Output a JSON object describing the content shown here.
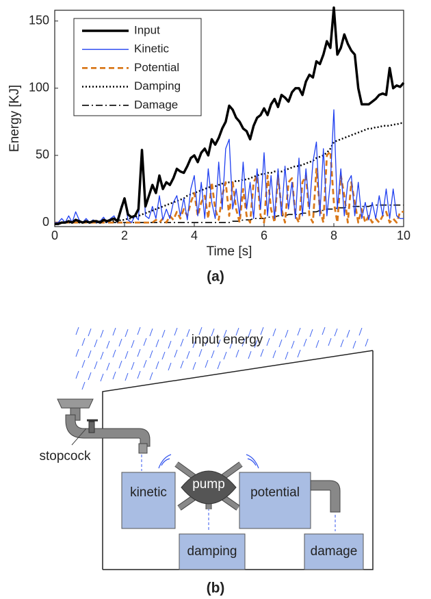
{
  "chart_data": {
    "type": "line",
    "caption": "(a)",
    "x_label": "Time [s]",
    "y_label": "Energy [KJ]",
    "x": [
      0,
      0.1,
      0.2,
      0.3,
      0.4,
      0.5,
      0.6,
      0.7,
      0.8,
      0.9,
      1,
      1.1,
      1.2,
      1.3,
      1.4,
      1.5,
      1.6,
      1.7,
      1.8,
      1.9,
      2,
      2.1,
      2.2,
      2.3,
      2.4,
      2.5,
      2.6,
      2.7,
      2.8,
      2.9,
      3,
      3.1,
      3.2,
      3.3,
      3.4,
      3.5,
      3.6,
      3.7,
      3.8,
      3.9,
      4,
      4.1,
      4.2,
      4.3,
      4.4,
      4.5,
      4.6,
      4.7,
      4.8,
      4.9,
      5,
      5.1,
      5.2,
      5.3,
      5.4,
      5.5,
      5.6,
      5.7,
      5.8,
      5.9,
      6,
      6.1,
      6.2,
      6.3,
      6.4,
      6.5,
      6.6,
      6.7,
      6.8,
      6.9,
      7,
      7.1,
      7.2,
      7.3,
      7.4,
      7.5,
      7.6,
      7.7,
      7.8,
      7.9,
      8,
      8.1,
      8.2,
      8.3,
      8.4,
      8.5,
      8.6,
      8.7,
      8.8,
      8.9,
      9,
      9.1,
      9.2,
      9.3,
      9.4,
      9.5,
      9.6,
      9.7,
      9.8,
      9.9,
      10
    ],
    "series": [
      {
        "name": "Input",
        "color": "#000000",
        "style": "solid",
        "width": 3.5,
        "values": [
          -1,
          -1,
          0,
          0,
          1,
          0,
          2,
          1,
          0,
          1,
          0,
          1,
          1,
          0,
          2,
          1,
          2,
          3,
          1,
          10,
          18,
          6,
          4,
          5,
          10,
          54,
          12,
          20,
          28,
          22,
          35,
          25,
          30,
          28,
          33,
          40,
          38,
          37,
          42,
          48,
          50,
          45,
          52,
          55,
          50,
          62,
          58,
          63,
          70,
          75,
          87,
          84,
          78,
          75,
          70,
          68,
          62,
          72,
          78,
          80,
          85,
          80,
          88,
          92,
          86,
          95,
          93,
          90,
          97,
          100,
          100,
          95,
          105,
          110,
          108,
          120,
          118,
          125,
          135,
          130,
          160,
          125,
          130,
          140,
          133,
          128,
          125,
          100,
          88,
          88,
          88,
          90,
          92,
          95,
          96,
          95,
          115,
          100,
          102,
          101,
          104
        ]
      },
      {
        "name": "Kinetic",
        "color": "#1f3ff0",
        "style": "solid",
        "width": 1.3,
        "values": [
          0,
          0,
          3,
          0,
          5,
          0,
          8,
          2,
          0,
          3,
          0,
          2,
          0,
          1,
          4,
          0,
          3,
          5,
          0,
          12,
          18,
          2,
          0,
          5,
          2,
          52,
          5,
          3,
          12,
          3,
          20,
          2,
          10,
          3,
          15,
          20,
          5,
          18,
          2,
          25,
          35,
          5,
          30,
          3,
          40,
          15,
          3,
          45,
          10,
          55,
          62,
          10,
          25,
          5,
          45,
          10,
          30,
          3,
          40,
          10,
          52,
          5,
          35,
          3,
          40,
          5,
          42,
          10,
          30,
          3,
          48,
          5,
          40,
          10,
          45,
          60,
          5,
          55,
          5,
          30,
          84,
          10,
          40,
          5,
          30,
          35,
          5,
          30,
          3,
          15,
          2,
          15,
          3,
          20,
          5,
          25,
          3,
          25,
          5,
          3,
          3
        ]
      },
      {
        "name": "Potential",
        "color": "#d9781a",
        "style": "dashed",
        "width": 2.8,
        "values": [
          0,
          0,
          0,
          0,
          0,
          0,
          0,
          0,
          0,
          0,
          0,
          0,
          0,
          0,
          0,
          0,
          0,
          0,
          0,
          0,
          0,
          0,
          0,
          0,
          0,
          0,
          0,
          0,
          0,
          2,
          0,
          3,
          0,
          5,
          2,
          8,
          3,
          10,
          5,
          15,
          22,
          5,
          15,
          20,
          3,
          30,
          10,
          2,
          20,
          30,
          5,
          30,
          10,
          0,
          25,
          5,
          0,
          30,
          35,
          5,
          0,
          35,
          10,
          0,
          35,
          10,
          0,
          30,
          33,
          5,
          0,
          30,
          35,
          5,
          0,
          40,
          10,
          0,
          50,
          53,
          15,
          0,
          35,
          20,
          0,
          30,
          15,
          0,
          10,
          0,
          5,
          0,
          3,
          0,
          5,
          8,
          0,
          3,
          0,
          8,
          8
        ]
      },
      {
        "name": "Damping",
        "color": "#000000",
        "style": "dotted",
        "width": 2.5,
        "values": [
          0,
          0,
          0,
          0,
          0,
          0,
          0,
          0,
          0,
          0,
          0,
          0,
          0,
          1,
          1,
          1,
          1,
          1,
          1,
          2,
          2,
          3,
          3,
          4,
          5,
          6,
          7,
          8,
          9,
          10,
          11,
          12,
          13,
          14,
          15,
          16,
          17,
          18,
          20,
          21,
          22,
          23,
          24,
          25,
          26,
          27,
          27,
          28,
          29,
          29,
          30,
          30,
          31,
          31,
          32,
          32,
          33,
          34,
          35,
          36,
          36,
          37,
          37,
          38,
          38,
          38,
          39,
          40,
          41,
          42,
          42,
          43,
          44,
          45,
          46,
          48,
          49,
          50,
          52,
          55,
          60,
          61,
          62,
          63,
          64,
          65,
          66,
          67,
          68,
          69,
          70,
          70,
          71,
          71,
          72,
          72,
          72,
          73,
          73,
          74,
          74
        ]
      },
      {
        "name": "Damage",
        "color": "#000000",
        "style": "dashdot",
        "width": 1.6,
        "values": [
          0,
          0,
          0,
          0,
          0,
          0,
          0,
          0,
          0,
          0,
          0,
          0,
          0,
          0,
          0,
          0,
          0,
          0,
          0,
          0,
          0,
          0,
          0,
          0,
          0,
          0,
          0,
          0,
          0,
          0,
          0,
          0,
          0,
          0,
          0,
          0,
          0,
          0,
          0,
          0,
          0,
          0,
          0,
          0,
          0,
          0,
          0,
          0,
          0,
          0,
          0,
          1,
          1,
          1,
          2,
          2,
          2,
          3,
          3,
          3,
          3,
          4,
          4,
          4,
          5,
          5,
          5,
          6,
          6,
          6,
          6,
          7,
          7,
          8,
          8,
          8,
          9,
          9,
          10,
          10,
          10,
          11,
          11,
          11,
          12,
          12,
          12,
          12,
          12,
          12,
          12,
          13,
          13,
          13,
          13,
          13,
          13,
          13,
          13,
          13,
          13
        ]
      }
    ],
    "xlim": [
      0,
      10
    ],
    "xticks": [
      0,
      2,
      4,
      6,
      8,
      10
    ],
    "ylim": [
      -3,
      158
    ],
    "yticks": [
      0,
      50,
      100,
      150
    ],
    "grid": false,
    "legend": "upper left"
  },
  "diagram": {
    "caption": "(b)",
    "rain_label": "input energy",
    "valve_label": "stopcock",
    "tanks": {
      "kinetic": "kinetic",
      "potential": "potential",
      "damping": "damping",
      "damage": "damage"
    },
    "pump_label": "pump"
  }
}
